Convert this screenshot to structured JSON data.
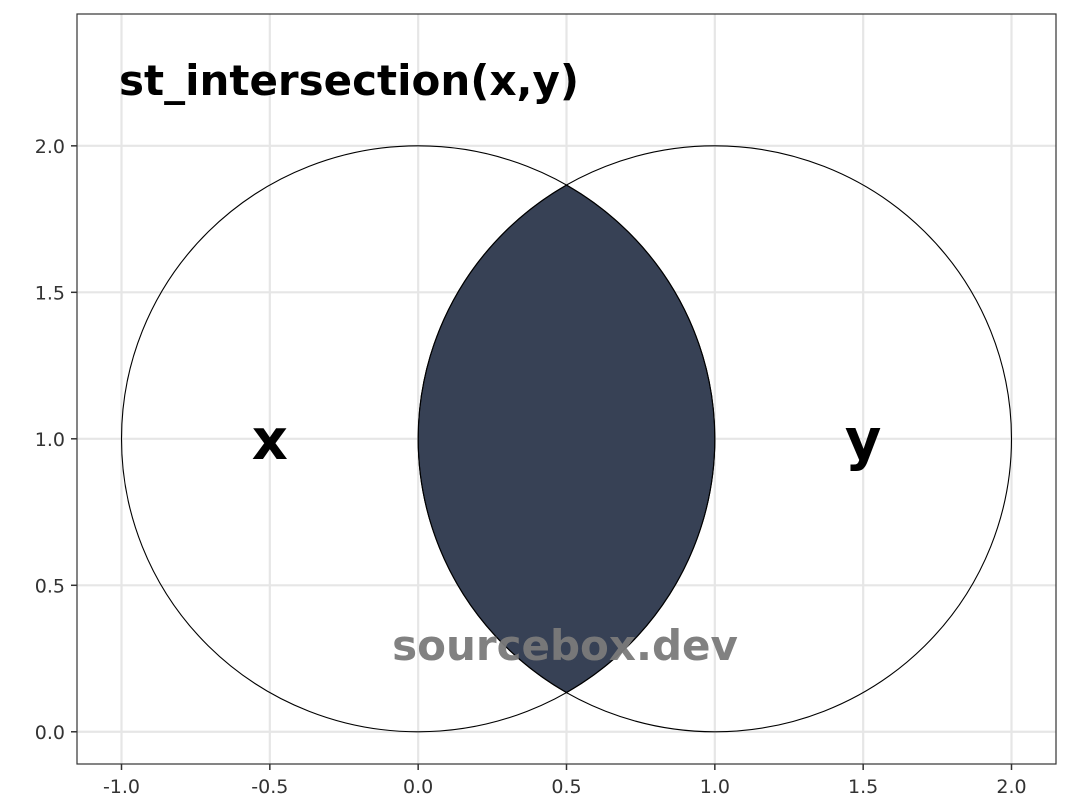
{
  "title": "st_intersection(x,y)",
  "watermark": "sourcebox.dev",
  "colors": {
    "intersection_fill": "#374155",
    "grid": "#e6e6e6",
    "outline": "#000000",
    "axis_text": "#333333",
    "watermark": "#7a7a7a"
  },
  "chart_data": {
    "type": "diagram",
    "xlim": [
      -1.15,
      2.15
    ],
    "ylim": [
      -0.11,
      2.45
    ],
    "x_ticks": [
      -1.0,
      -0.5,
      0.0,
      0.5,
      1.0,
      1.5,
      2.0
    ],
    "x_tick_labels": [
      "-1.0",
      "-0.5",
      "0.0",
      "0.5",
      "1.0",
      "1.5",
      "2.0"
    ],
    "y_ticks": [
      0.0,
      0.5,
      1.0,
      1.5,
      2.0
    ],
    "y_tick_labels": [
      "0.0",
      "0.5",
      "1.0",
      "1.5",
      "2.0"
    ],
    "circles": [
      {
        "label": "x",
        "cx": 0.0,
        "cy": 1.0,
        "r": 1.0,
        "label_pos": [
          -0.5,
          1.0
        ]
      },
      {
        "label": "y",
        "cx": 1.0,
        "cy": 1.0,
        "r": 1.0,
        "label_pos": [
          1.5,
          1.0
        ]
      }
    ],
    "highlighted_region": "intersection"
  }
}
